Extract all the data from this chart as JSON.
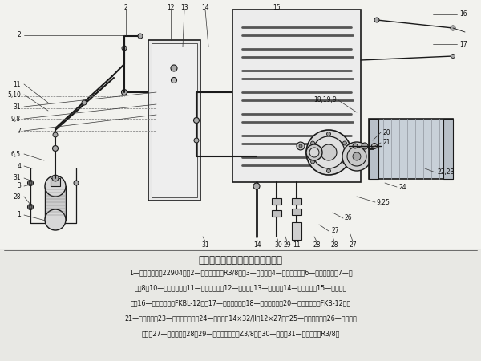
{
  "title": "粗磨头油路冷却水箱、油路结构图",
  "bg_color": "#e8e8e4",
  "line_color": "#1a1a1a",
  "text_color": "#111111",
  "caption_line1": "1—机油滤清器（22904）；2—直通管接头（R3/8）；3—紫铜管；4—油路安装板；6—内六角螺钉；7—箱",
  "caption_line2": "盖；8，10—内六角螺钉；11—组合密封垫；12—连接块；13—压力表；14—水管接头；15—橡胶密封",
  "caption_line3": "垫；16—直角管接头（FKBL-12）；17—油路冷却管；18—六角头螺栓；20—直通管接头（FKB-12）；",
  "caption_line4": "21—油泵电机；23—六角磁浮螺栓；24—联轴器（14×32/Jl；12×27）；25—内六角螺钉；26—油泵联结",
  "caption_line5": "法兰；27—齿轮油泵；28，29—直通管接头；（Z3/8）；30—水管；31—直角接头（R3/8）"
}
